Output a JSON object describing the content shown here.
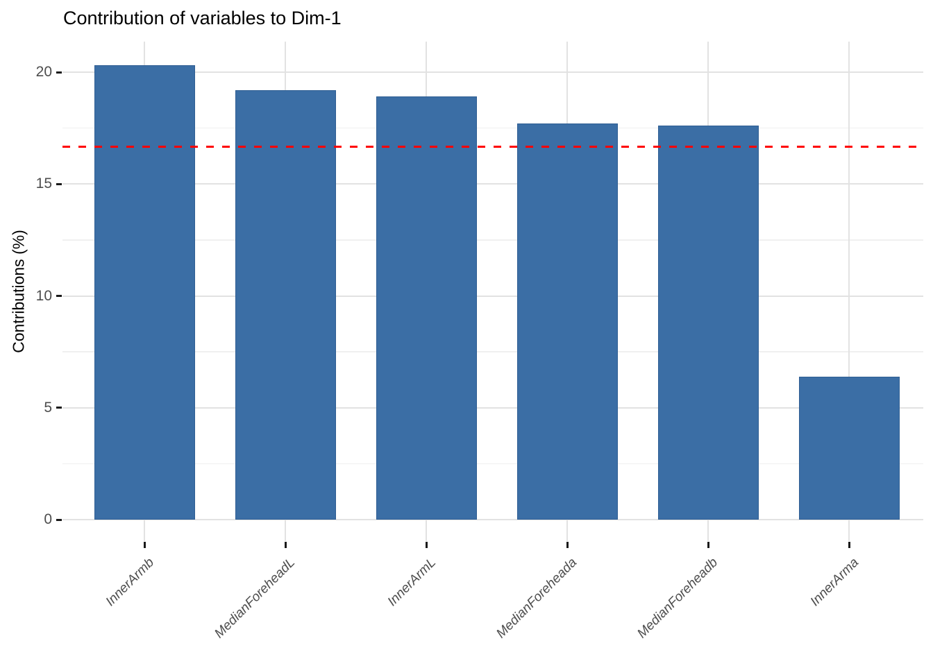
{
  "chart_data": {
    "type": "bar",
    "title": "Contribution of variables to Dim-1",
    "xlabel": "",
    "ylabel": "Contributions (%)",
    "categories": [
      "InnerArmb",
      "MedianForeheadL",
      "InnerArmL",
      "MedianForeheada",
      "MedianForeheadb",
      "InnerArma"
    ],
    "values": [
      20.3,
      19.2,
      18.9,
      17.7,
      17.6,
      6.4
    ],
    "yticks": [
      0,
      5,
      10,
      15,
      20
    ],
    "ylim": [
      -1,
      21.4
    ],
    "reference_line": {
      "value": 16.67,
      "linetype": "dashed",
      "color": "#FF0000"
    },
    "grid": true,
    "legend": "none",
    "bar_orientation": "vertical",
    "x_tick_label_angle": 45,
    "x_tick_label_style": "italic"
  },
  "colors": {
    "bar_fill": "#3B6EA5",
    "bar_border": "#2F5E93",
    "grid_major": "#E2E2E2",
    "grid_minor": "#F0F0F0",
    "axis_tick": "#1A1A1A",
    "axis_text": "#4D4D4D",
    "title_text": "#000000",
    "reference_line": "#FF0000",
    "background": "#FFFFFF"
  }
}
